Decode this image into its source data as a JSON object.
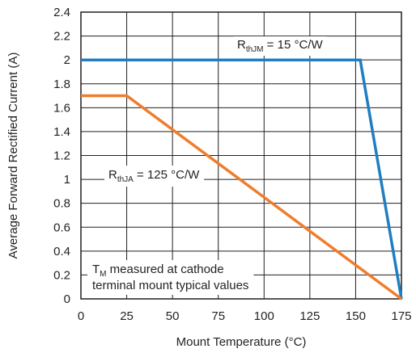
{
  "chart_data": {
    "type": "line",
    "xlabel": "Mount Temperature (°C)",
    "ylabel": "Average Forward Rectified Current (A)",
    "xlim": [
      0,
      175
    ],
    "ylim": [
      0,
      2.4
    ],
    "x_ticks": [
      "0",
      "25",
      "50",
      "75",
      "100",
      "125",
      "150",
      "175"
    ],
    "y_ticks": [
      "0",
      "0.2",
      "0.4",
      "0.6",
      "0.8",
      "1",
      "1.2",
      "1.4",
      "1.6",
      "1.8",
      "2",
      "2.2",
      "2.4"
    ],
    "grid": true,
    "series": [
      {
        "name": "RthJM = 15 °C/W",
        "color": "#1f7ec1",
        "x": [
          0,
          152.5,
          175
        ],
        "y": [
          2.0,
          2.0,
          0
        ]
      },
      {
        "name": "RthJA = 125 °C/W",
        "color": "#ef7d2d",
        "x": [
          0,
          25,
          175
        ],
        "y": [
          1.7,
          1.7,
          0
        ]
      }
    ],
    "annotations": {
      "rthjm": {
        "main": "R",
        "sub": "thJM",
        "rest": " = 15 °C/W"
      },
      "rthja": {
        "main": "R",
        "sub": "thJA",
        "rest": " = 125 °C/W"
      },
      "note_line1_main": "T",
      "note_line1_sub": "M",
      "note_line1_rest": " measured at cathode",
      "note_line2": "terminal mount typical values"
    }
  }
}
